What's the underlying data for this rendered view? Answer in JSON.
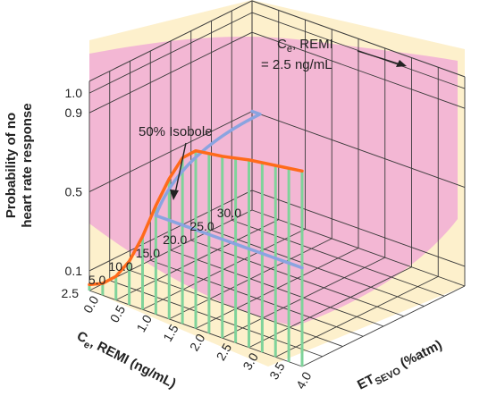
{
  "chart_data": {
    "type": "surface3d",
    "y_axis": {
      "label": "Probability of no heart rate response",
      "label_lines": [
        "Probability of no",
        "heart rate response"
      ],
      "ticks": [
        "0.1",
        "0.5",
        "0.9",
        "1.0"
      ],
      "range": [
        0,
        1
      ]
    },
    "remi_axis": {
      "label_main": "C",
      "label_sub": "e",
      "label_rest": ", REMI (ng/mL)",
      "ticks": [
        "30.0",
        "25.0",
        "20.0",
        "15.0",
        "10.0",
        "5.0",
        "2.5"
      ],
      "range": [
        2.5,
        30
      ]
    },
    "sevo_axis": {
      "label_main": "ET",
      "label_sub": "SEVO",
      "label_rest": " (%atm)",
      "ticks": [
        "0.0",
        "0.5",
        "1.0",
        "1.5",
        "2.0",
        "2.5",
        "3.0",
        "3.5",
        "4.0"
      ],
      "range": [
        0,
        4
      ]
    },
    "isobole_50": {
      "label": "50% Isobole",
      "probability": 0.5,
      "color": "#8aa4e0"
    },
    "remi_curve": {
      "label_line1_main": "C",
      "label_line1_sub": "e",
      "label_line1_rest": ", REMI",
      "label_line2": "= 2.5 ng/mL",
      "remi": 2.5,
      "color": "#ff6a1a",
      "points": [
        {
          "sevo": 0.0,
          "p": 0.03
        },
        {
          "sevo": 0.25,
          "p": 0.06
        },
        {
          "sevo": 0.5,
          "p": 0.12
        },
        {
          "sevo": 0.75,
          "p": 0.22
        },
        {
          "sevo": 1.0,
          "p": 0.37
        },
        {
          "sevo": 1.25,
          "p": 0.55
        },
        {
          "sevo": 1.5,
          "p": 0.71
        },
        {
          "sevo": 1.75,
          "p": 0.84
        },
        {
          "sevo": 2.0,
          "p": 0.9
        },
        {
          "sevo": 2.5,
          "p": 0.92
        },
        {
          "sevo": 3.0,
          "p": 0.95
        },
        {
          "sevo": 3.5,
          "p": 0.97
        },
        {
          "sevo": 4.0,
          "p": 0.99
        }
      ]
    },
    "colors": {
      "surface": "#f0a9d6",
      "wall": "#fdf0cc",
      "grid": "#3a3a3a",
      "drop_lines": "#7fd39a"
    }
  }
}
